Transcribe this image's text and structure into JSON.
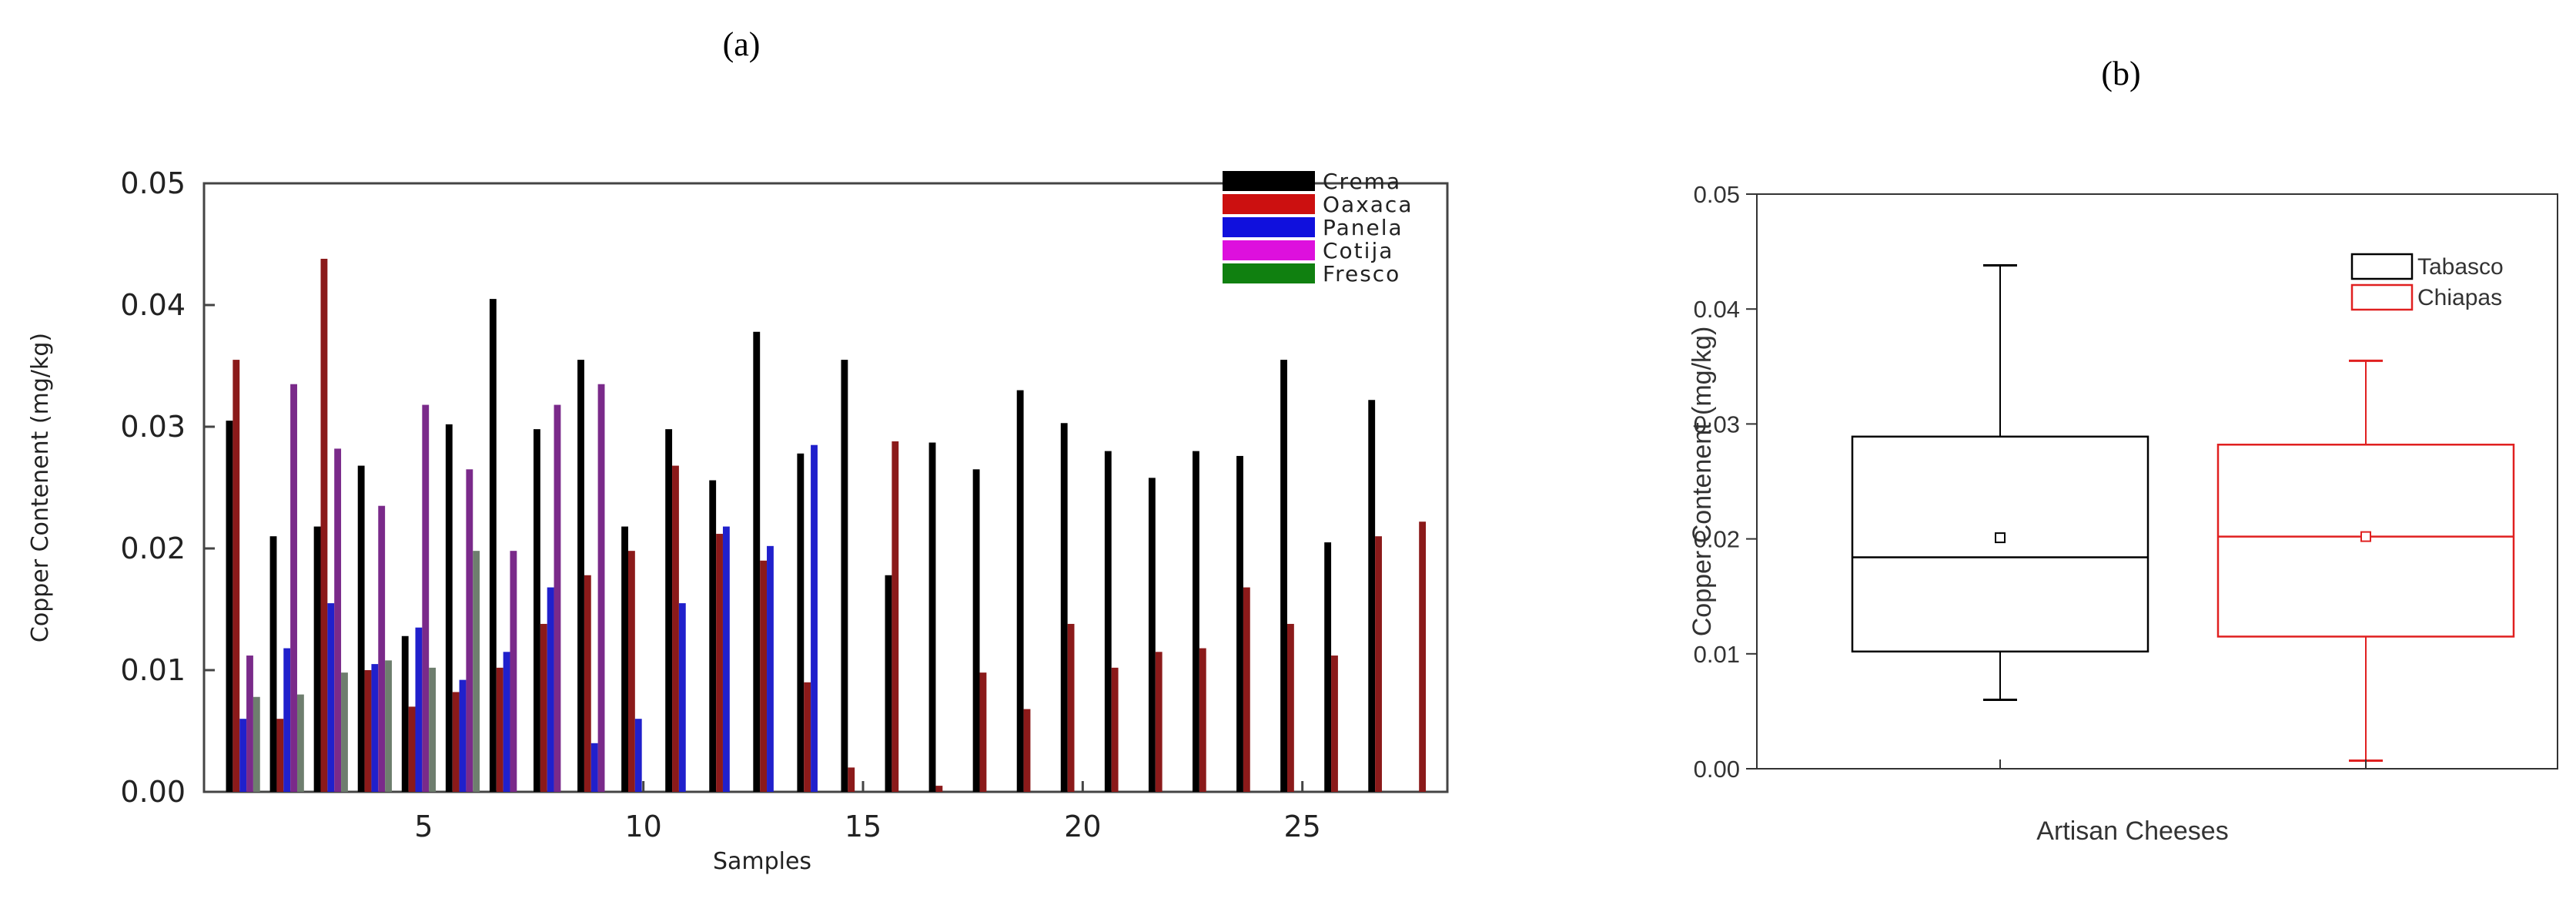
{
  "chart_data": [
    {
      "panel_label": "(a)",
      "type": "bar",
      "title": "",
      "xlabel": "Samples",
      "ylabel": "Copper Contenent (mg/kg)",
      "xlim": [
        0,
        28.3
      ],
      "ylim": [
        0,
        0.05
      ],
      "x_ticks": [
        5,
        10,
        15,
        20,
        25
      ],
      "y_ticks": [
        "0.00",
        "0.01",
        "0.02",
        "0.03",
        "0.04",
        "0.05"
      ],
      "legend_position": "top-right",
      "grid": false,
      "x": [
        1,
        2,
        3,
        4,
        5,
        6,
        7,
        8,
        9,
        10,
        11,
        12,
        13,
        14,
        15,
        16,
        17,
        18,
        19,
        20,
        21,
        22,
        23,
        24,
        25,
        26,
        27,
        28
      ],
      "series": [
        {
          "name": "Crema",
          "color": "#000000",
          "values": [
            0.0305,
            0.021,
            0.0218,
            0.0268,
            0.0128,
            0.0302,
            0.0405,
            0.0298,
            0.0355,
            0.0218,
            0.0298,
            0.0256,
            0.0378,
            0.0278,
            0.0355,
            0.0178,
            0.0287,
            0.0265,
            0.033,
            0.0303,
            0.028,
            0.0258,
            0.028,
            0.0276,
            0.0355,
            0.0205,
            0.0322,
            null
          ]
        },
        {
          "name": "Oaxaca",
          "color": "#8b1a1a",
          "values": [
            0.0355,
            0.006,
            0.0438,
            0.01,
            0.007,
            0.0082,
            0.0102,
            0.0138,
            0.0178,
            0.0198,
            0.0268,
            0.0212,
            0.019,
            0.009,
            0.002,
            0.0288,
            0.0005,
            0.0098,
            0.0068,
            0.0138,
            0.0102,
            0.0115,
            0.0118,
            0.0168,
            0.0138,
            0.0112,
            0.021,
            0.0222
          ]
        },
        {
          "name": "Panela",
          "color": "#2020cc",
          "values": [
            0.006,
            0.0118,
            0.0155,
            0.0105,
            0.0135,
            0.0092,
            0.0115,
            0.0168,
            0.004,
            0.006,
            0.0155,
            0.0218,
            0.0202,
            0.0285,
            null,
            null,
            null,
            null,
            null,
            null,
            null,
            null,
            null,
            null,
            null,
            null,
            null,
            null
          ]
        },
        {
          "name": "Cotija",
          "color": "#7a2a8a",
          "values": [
            0.0112,
            0.0335,
            0.0282,
            0.0235,
            0.0318,
            0.0265,
            0.0198,
            0.0318,
            0.0335,
            null,
            null,
            null,
            null,
            null,
            null,
            null,
            null,
            null,
            null,
            null,
            null,
            null,
            null,
            null,
            null,
            null,
            null,
            null
          ]
        },
        {
          "name": "Fresco",
          "color": "#6e7e6e",
          "values": [
            0.0078,
            0.008,
            0.0098,
            0.0108,
            0.0102,
            0.0198,
            null,
            null,
            null,
            null,
            null,
            null,
            null,
            null,
            null,
            null,
            null,
            null,
            null,
            null,
            null,
            null,
            null,
            null,
            null,
            null,
            null,
            null
          ]
        }
      ],
      "legend_swatch_colors": [
        "#000000",
        "#cc1010",
        "#1010dd",
        "#dd10dd",
        "#108010"
      ]
    },
    {
      "panel_label": "(b)",
      "type": "box",
      "title": "",
      "xlabel": "Artisan Cheeses",
      "ylabel": "Copper Contenent (mg/kg)",
      "ylim": [
        0,
        0.05
      ],
      "y_ticks": [
        "0.00",
        "0.01",
        "0.02",
        "0.03",
        "0.04",
        "0.05"
      ],
      "legend_position": "top-right",
      "grid": false,
      "series": [
        {
          "name": "Tabasco",
          "color": "#000000",
          "min": 0.006,
          "q1": 0.0102,
          "median": 0.0184,
          "q3": 0.0289,
          "max": 0.0438,
          "mean": 0.0201
        },
        {
          "name": "Chiapas",
          "color": "#e02020",
          "min": 0.0007,
          "q1": 0.0115,
          "median": 0.0202,
          "q3": 0.0282,
          "max": 0.0355,
          "mean": 0.0202
        }
      ]
    }
  ]
}
